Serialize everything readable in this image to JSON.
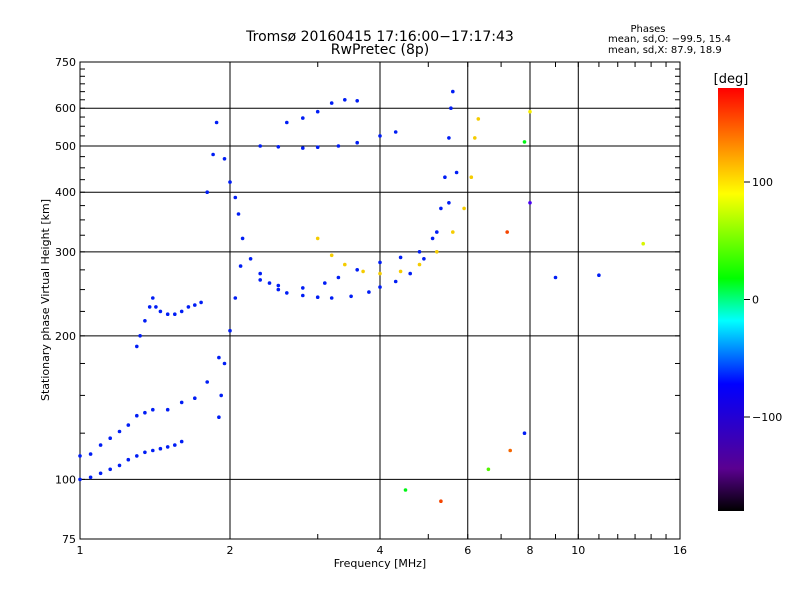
{
  "chart_data": {
    "type": "scatter",
    "title": "Tromsø 20160415 17:16:00−17:17:43",
    "subtitle": "RwPretec (8p)",
    "xlabel": "Frequency [MHz]",
    "ylabel": "Stationary phase Virtual Height [km]",
    "x_scale": "log",
    "y_scale": "log",
    "xlim": [
      1,
      16
    ],
    "ylim": [
      75,
      750
    ],
    "x_ticks": [
      1,
      2,
      4,
      6,
      8,
      10,
      16
    ],
    "x_tick_labels": [
      "1",
      "2",
      "4",
      "6",
      "8",
      "10",
      "16"
    ],
    "y_ticks": [
      75,
      100,
      200,
      300,
      400,
      500,
      600,
      750
    ],
    "y_tick_labels": [
      "75",
      "100",
      "200",
      "300",
      "400",
      "500",
      "600",
      "750"
    ],
    "grid": true,
    "stats": {
      "heading": "Phases",
      "line_o": "mean, sd,O: −99.5, 15.4",
      "line_x": "mean, sd,X:  87.9, 18.9"
    },
    "colorbar": {
      "label": "[deg]",
      "range": [
        -180,
        180
      ],
      "ticks": [
        100,
        0,
        -100
      ],
      "tick_labels": [
        "100",
        "0",
        "−100"
      ],
      "colormap": "rainbow (black → violet → blue → cyan → green → yellow → red)"
    },
    "series": [
      {
        "points": [
          [
            1.0,
            112,
            -100
          ],
          [
            1.05,
            113,
            -100
          ],
          [
            1.1,
            118,
            -100
          ],
          [
            1.15,
            122,
            -100
          ],
          [
            1.2,
            126,
            -100
          ],
          [
            1.25,
            130,
            -100
          ],
          [
            1.3,
            136,
            -100
          ],
          [
            1.35,
            138,
            -100
          ],
          [
            1.4,
            140,
            -100
          ],
          [
            1.5,
            140,
            -100
          ],
          [
            1.6,
            145,
            -100
          ],
          [
            1.7,
            148,
            -100
          ],
          [
            1.8,
            160,
            -100
          ],
          [
            1.9,
            180,
            -100
          ]
        ]
      },
      {
        "points": [
          [
            1.0,
            100,
            -100
          ],
          [
            1.05,
            101,
            -100
          ],
          [
            1.1,
            103,
            -100
          ],
          [
            1.15,
            105,
            -100
          ],
          [
            1.2,
            107,
            -100
          ],
          [
            1.25,
            110,
            -100
          ],
          [
            1.3,
            112,
            -100
          ],
          [
            1.35,
            114,
            -100
          ],
          [
            1.4,
            115,
            -100
          ],
          [
            1.45,
            116,
            -100
          ],
          [
            1.5,
            117,
            -100
          ],
          [
            1.55,
            118,
            -100
          ],
          [
            1.6,
            120,
            -100
          ]
        ]
      },
      {
        "points": [
          [
            1.3,
            190,
            -100
          ],
          [
            1.32,
            200,
            -100
          ],
          [
            1.35,
            215,
            -100
          ],
          [
            1.38,
            230,
            -100
          ],
          [
            1.4,
            240,
            -100
          ],
          [
            1.42,
            230,
            -100
          ],
          [
            1.45,
            225,
            -100
          ],
          [
            1.5,
            222,
            -100
          ],
          [
            1.55,
            222,
            -100
          ],
          [
            1.6,
            225,
            -100
          ],
          [
            1.65,
            230,
            -100
          ],
          [
            1.7,
            232,
            -100
          ],
          [
            1.75,
            235,
            -100
          ]
        ]
      },
      {
        "points": [
          [
            1.8,
            400,
            -100
          ],
          [
            1.85,
            480,
            -100
          ],
          [
            1.88,
            560,
            -100
          ],
          [
            1.95,
            470,
            -100
          ],
          [
            2.0,
            420,
            -100
          ],
          [
            2.05,
            390,
            -100
          ],
          [
            2.08,
            360,
            -100
          ],
          [
            2.12,
            320,
            -100
          ],
          [
            2.1,
            280,
            -100
          ],
          [
            2.05,
            240,
            -100
          ],
          [
            2.0,
            205,
            -100
          ],
          [
            1.95,
            175,
            -100
          ],
          [
            1.92,
            150,
            -100
          ],
          [
            1.9,
            135,
            -100
          ]
        ]
      },
      {
        "points": [
          [
            2.2,
            290,
            -100
          ],
          [
            2.3,
            270,
            -100
          ],
          [
            2.4,
            258,
            -100
          ],
          [
            2.5,
            250,
            -100
          ],
          [
            2.6,
            246,
            -100
          ],
          [
            2.8,
            243,
            -100
          ],
          [
            3.0,
            241,
            -100
          ],
          [
            3.2,
            240,
            -100
          ],
          [
            3.5,
            242,
            -100
          ],
          [
            3.8,
            247,
            -100
          ],
          [
            4.0,
            253,
            -100
          ],
          [
            4.3,
            260,
            -100
          ],
          [
            4.6,
            270,
            -100
          ],
          [
            4.9,
            290,
            -100
          ],
          [
            5.1,
            320,
            -100
          ],
          [
            5.3,
            370,
            -100
          ],
          [
            5.4,
            430,
            -100
          ],
          [
            5.5,
            520,
            -100
          ],
          [
            5.55,
            600,
            -100
          ],
          [
            5.6,
            650,
            -100
          ]
        ]
      },
      {
        "points": [
          [
            2.3,
            262,
            -100
          ],
          [
            2.5,
            255,
            -100
          ],
          [
            2.8,
            252,
            -100
          ],
          [
            3.1,
            258,
            -100
          ],
          [
            3.3,
            265,
            -100
          ],
          [
            3.6,
            275,
            -100
          ],
          [
            4.0,
            285,
            -100
          ],
          [
            4.4,
            292,
            -100
          ],
          [
            4.8,
            300,
            -100
          ],
          [
            5.2,
            330,
            -100
          ],
          [
            5.5,
            380,
            -100
          ],
          [
            5.7,
            440,
            -100
          ]
        ]
      },
      {
        "points": [
          [
            3.0,
            320,
            120
          ],
          [
            3.2,
            295,
            120
          ],
          [
            3.4,
            282,
            120
          ],
          [
            3.7,
            273,
            120
          ],
          [
            4.0,
            270,
            120
          ],
          [
            4.4,
            273,
            120
          ],
          [
            4.8,
            282,
            120
          ],
          [
            5.2,
            300,
            120
          ],
          [
            5.6,
            330,
            120
          ],
          [
            5.9,
            370,
            120
          ],
          [
            6.1,
            430,
            120
          ],
          [
            6.2,
            520,
            120
          ],
          [
            6.3,
            570,
            120
          ]
        ]
      },
      {
        "points": [
          [
            2.3,
            500,
            -100
          ],
          [
            2.5,
            498,
            -100
          ],
          [
            2.8,
            495,
            -100
          ],
          [
            3.0,
            497,
            -100
          ],
          [
            3.3,
            500,
            -100
          ],
          [
            3.6,
            508,
            -100
          ],
          [
            4.0,
            525,
            -100
          ],
          [
            4.3,
            535,
            -100
          ]
        ]
      },
      {
        "points": [
          [
            2.6,
            560,
            -100
          ],
          [
            2.8,
            572,
            -100
          ],
          [
            3.0,
            590,
            -100
          ],
          [
            3.2,
            615,
            -100
          ],
          [
            3.4,
            625,
            -100
          ],
          [
            3.6,
            622,
            -100
          ]
        ]
      },
      {
        "points": [
          [
            4.5,
            95,
            30
          ],
          [
            5.3,
            90,
            160
          ],
          [
            6.6,
            105,
            60
          ],
          [
            7.3,
            115,
            150
          ],
          [
            7.8,
            125,
            -100
          ],
          [
            8.0,
            590,
            110
          ],
          [
            8.0,
            380,
            -130
          ],
          [
            9.0,
            265,
            -100
          ],
          [
            11.0,
            268,
            -100
          ],
          [
            13.5,
            312,
            100
          ],
          [
            7.8,
            510,
            30
          ],
          [
            7.2,
            330,
            160
          ]
        ]
      }
    ]
  }
}
